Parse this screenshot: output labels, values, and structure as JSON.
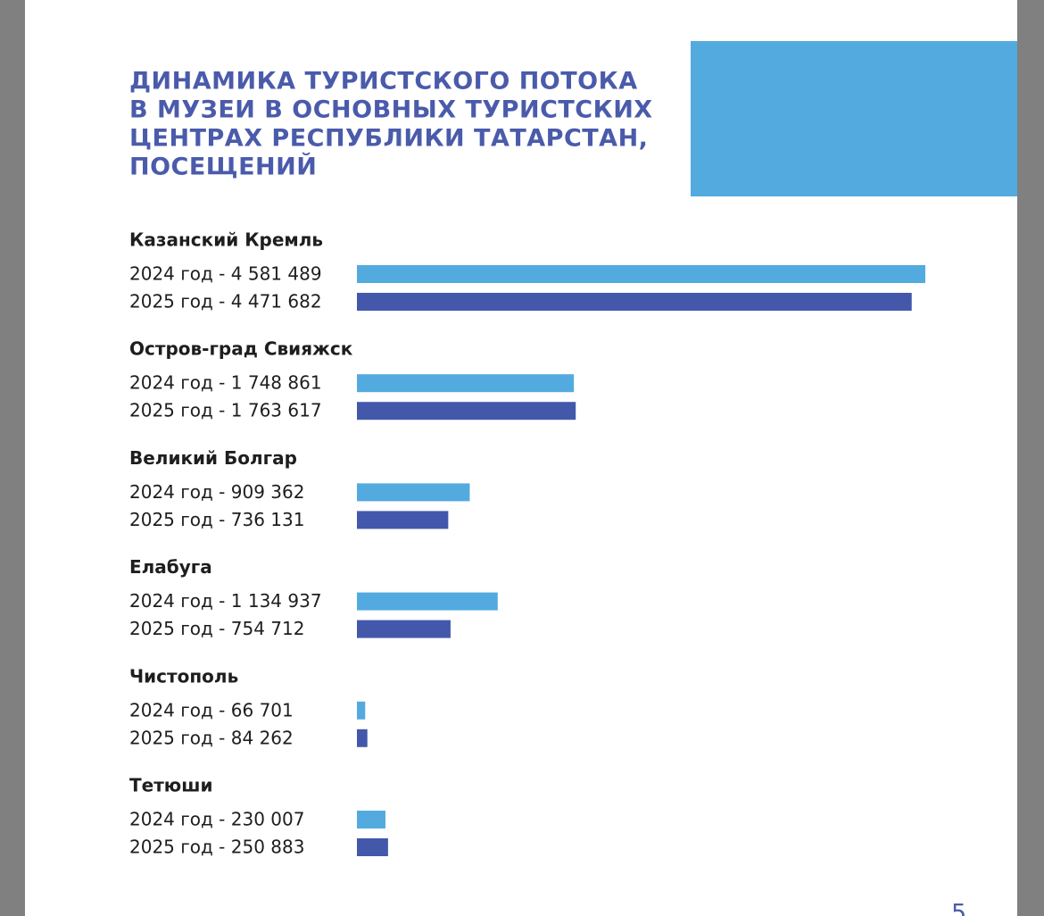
{
  "chart_data": {
    "type": "hbar",
    "title": [
      "ДИНАМИКА ТУРИСТСКОГО ПОТОКА",
      "В МУЗЕИ В ОСНОВНЫХ ТУРИСТСКИХ",
      "ЦЕНТРАХ РЕСПУБЛИКИ ТАТАРСТАН,",
      "ПОСЕЩЕНИЙ"
    ],
    "categories": [
      "Казанский Кремль",
      "Остров-град Свияжск",
      "Великий Болгар",
      "Елабуга",
      "Чистополь",
      "Тетюши"
    ],
    "series": [
      {
        "color": "#53aadf",
        "values": [
          4581489,
          1748861,
          909362,
          1134937,
          66701,
          230007
        ],
        "value_labels": [
          "2024 год - 4 581 489",
          "2024 год - 1 748 861",
          "2024 год - 909 362",
          "2024 год - 1 134 937",
          "2024 год - 66 701",
          "2024 год - 230 007"
        ]
      },
      {
        "color": "#4358ab",
        "values": [
          4471682,
          1763617,
          736131,
          754712,
          84262,
          250883
        ],
        "value_labels": [
          "2025 год - 4 471 682",
          "2025 год - 1 763 617",
          "2025 год - 736 131",
          "2025 год - 754 712",
          "2025 год - 84 262",
          "2025 год - 250 883"
        ]
      }
    ],
    "page_number": "5"
  }
}
